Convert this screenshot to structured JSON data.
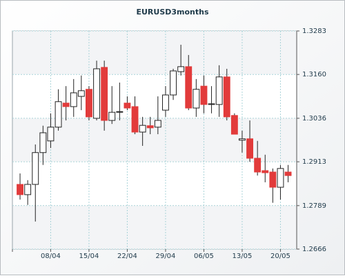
{
  "chart_data": {
    "type": "candlestick",
    "title": "EURUSD3months",
    "categories": [
      null,
      null,
      null,
      null,
      "08/04",
      null,
      null,
      null,
      null,
      "15/04",
      null,
      null,
      null,
      null,
      "22/04",
      null,
      null,
      null,
      null,
      "29/04",
      null,
      null,
      null,
      null,
      "06/05",
      null,
      null,
      null,
      null,
      "13/05",
      null,
      null,
      null,
      null,
      "20/05",
      null
    ],
    "open": [
      1.2849,
      1.282,
      1.2849,
      1.2939,
      1.2972,
      1.3011,
      1.3079,
      1.3069,
      1.3098,
      1.3118,
      1.3036,
      1.318,
      1.303,
      1.3053,
      1.3079,
      1.3069,
      1.2997,
      1.3015,
      1.3011,
      1.3059,
      1.3102,
      1.3168,
      1.3182,
      1.3065,
      1.3127,
      1.3075,
      1.3075,
      1.3153,
      1.3044,
      1.2974,
      1.2978,
      1.2923,
      1.2888,
      1.2884,
      1.2841,
      1.2884
    ],
    "high": [
      1.288,
      1.2861,
      1.2962,
      1.3015,
      1.305,
      1.3118,
      1.3127,
      1.3147,
      1.3157,
      1.3127,
      1.3199,
      1.3199,
      1.3127,
      1.3137,
      1.3098,
      1.3098,
      1.304,
      1.304,
      1.3098,
      1.3127,
      1.3176,
      1.3244,
      1.3215,
      1.3147,
      1.3157,
      1.3127,
      1.3186,
      1.3176,
      1.305,
      1.3001,
      1.303,
      1.2972,
      1.2933,
      1.2894,
      1.2904,
      1.2904
    ],
    "low": [
      1.2806,
      1.2791,
      1.2744,
      1.2904,
      1.2952,
      1.3001,
      1.303,
      1.304,
      1.3059,
      1.303,
      1.303,
      1.3001,
      1.302,
      1.303,
      1.3059,
      1.2991,
      1.2958,
      1.2991,
      1.2991,
      1.304,
      1.3088,
      1.3157,
      1.3059,
      1.304,
      1.305,
      1.305,
      1.304,
      1.303,
      1.2991,
      1.2939,
      1.2913,
      1.2874,
      1.2855,
      1.2797,
      1.2806,
      1.2855
    ],
    "close": [
      1.282,
      1.2849,
      1.2939,
      1.2995,
      1.3011,
      1.3083,
      1.3069,
      1.3108,
      1.3114,
      1.304,
      1.3176,
      1.303,
      1.3053,
      1.3055,
      1.3065,
      1.2997,
      1.3016,
      1.3009,
      1.303,
      1.3102,
      1.317,
      1.3182,
      1.3065,
      1.3118,
      1.3075,
      1.3077,
      1.3153,
      1.304,
      1.2991,
      1.2978,
      1.2923,
      1.2884,
      1.2882,
      1.2841,
      1.2894,
      1.2874
    ],
    "up_color": "#ffffff",
    "down_color": "#e23b3b",
    "ylim": [
      1.2666,
      1.3283
    ],
    "yticks": [
      1.2666,
      1.2789,
      1.2913,
      1.3036,
      {
        "value": 1.316,
        "label": "1.3160"
      },
      1.3283
    ],
    "grid": true
  }
}
